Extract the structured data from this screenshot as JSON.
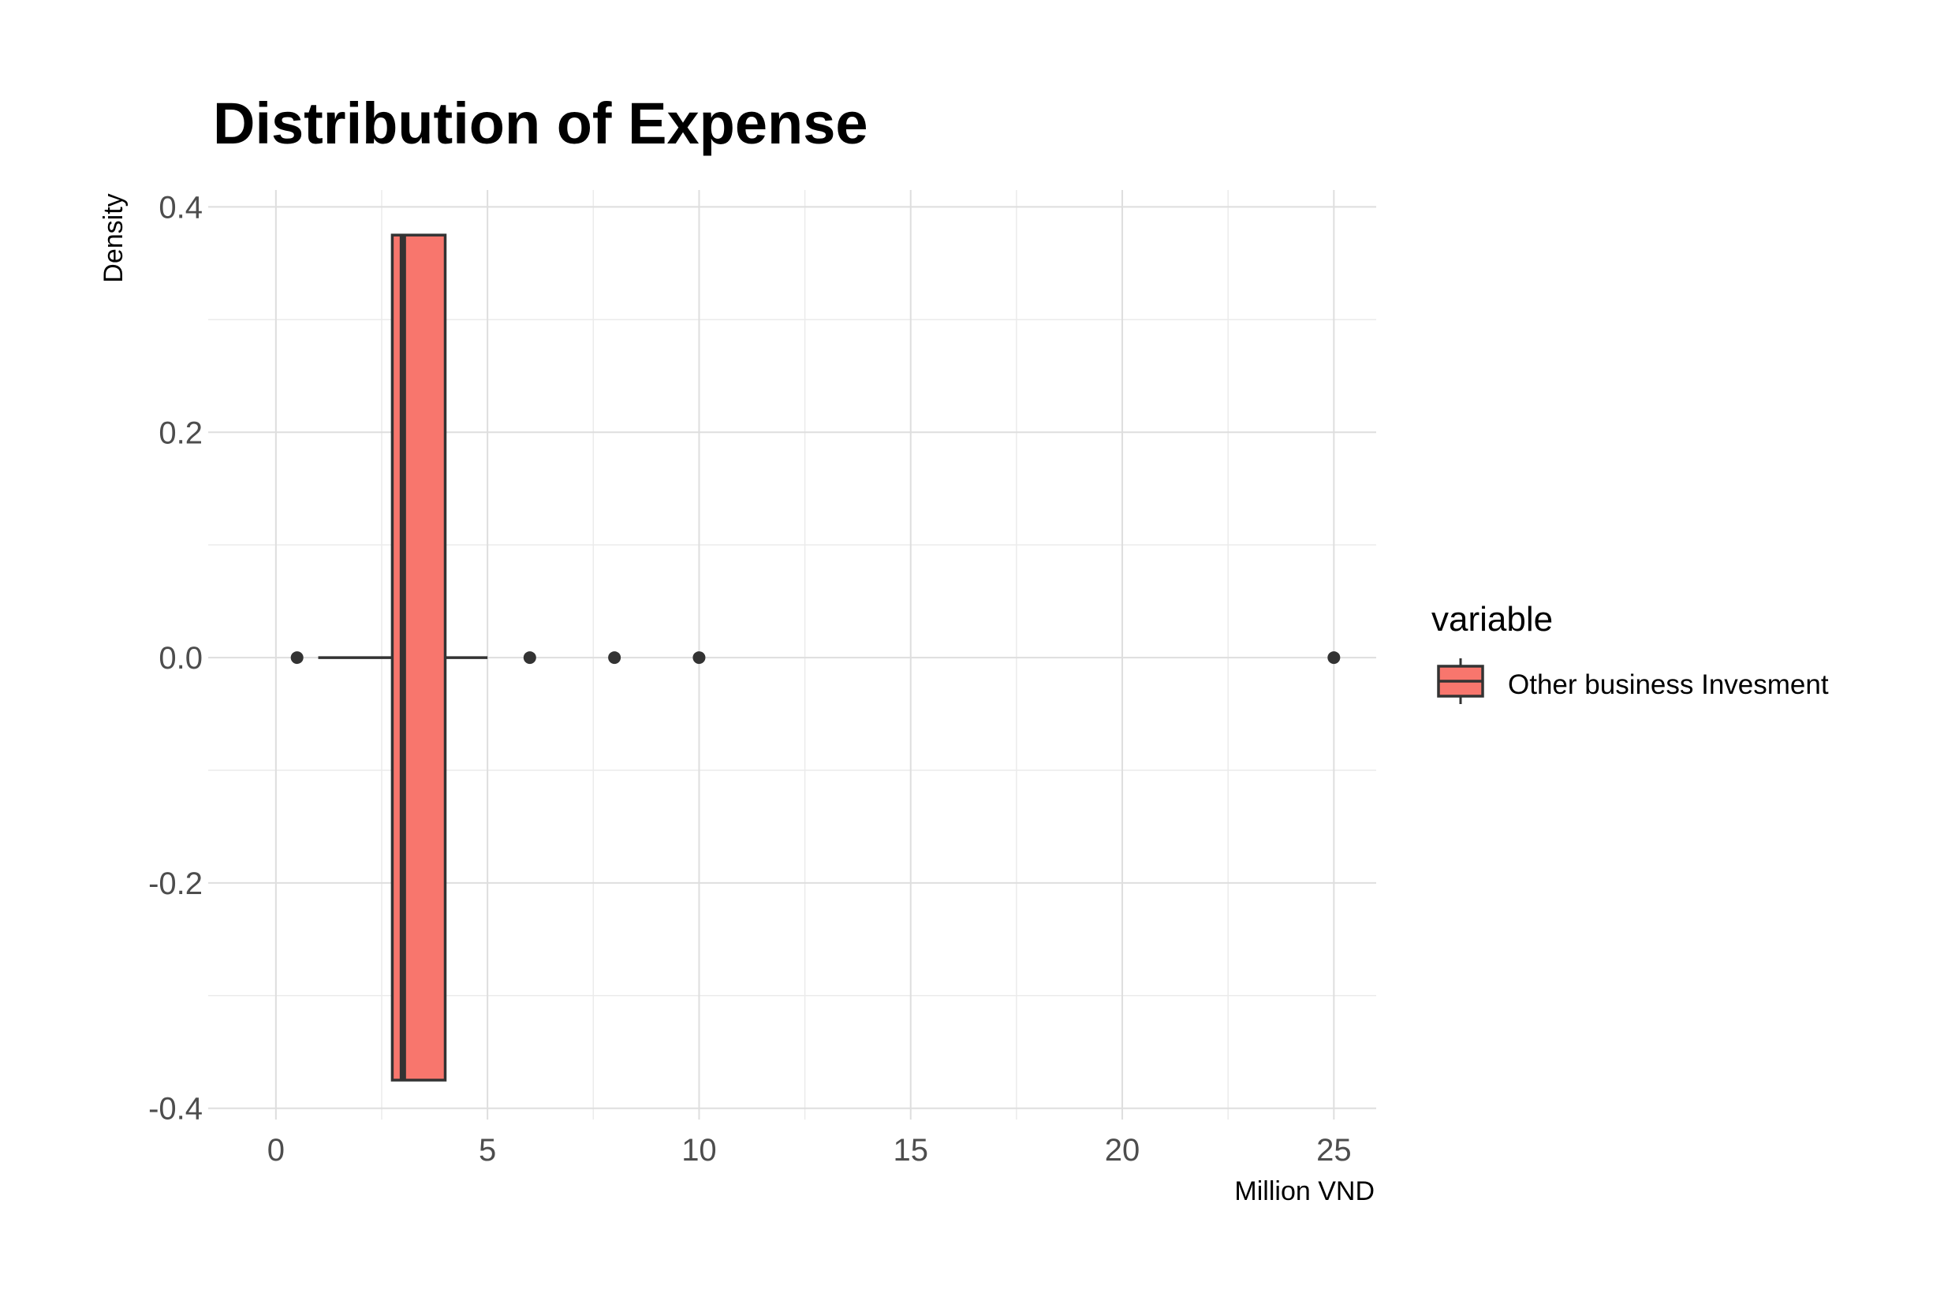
{
  "chart_data": {
    "type": "boxplot",
    "title": "Distribution of Expense",
    "xlabel": "Million VND",
    "ylabel": "Density",
    "xlim": [
      -1.6,
      26.0
    ],
    "ylim": [
      -0.41,
      0.415
    ],
    "x_ticks": [
      0,
      5,
      10,
      15,
      20,
      25
    ],
    "x_tick_labels": [
      "0",
      "5",
      "10",
      "15",
      "20",
      "25"
    ],
    "y_ticks": [
      -0.4,
      -0.2,
      0.0,
      0.2,
      0.4
    ],
    "y_tick_labels": [
      "-0.4",
      "-0.2",
      "0.0",
      "0.2",
      "0.4"
    ],
    "grid": true,
    "legend": {
      "title": "variable",
      "position": "right",
      "entries": [
        {
          "label": "Other business Invesment",
          "color": "#F8766D"
        }
      ]
    },
    "series": [
      {
        "name": "Other business Invesment",
        "color": "#F8766D",
        "y_center": 0.0,
        "box_half_height": 0.375,
        "whisker_low": 1.0,
        "q1": 2.75,
        "median": 3.0,
        "q3": 4.0,
        "whisker_high": 5.0,
        "outliers": [
          0.5,
          6.0,
          8.0,
          10.0,
          25.0
        ]
      }
    ]
  }
}
